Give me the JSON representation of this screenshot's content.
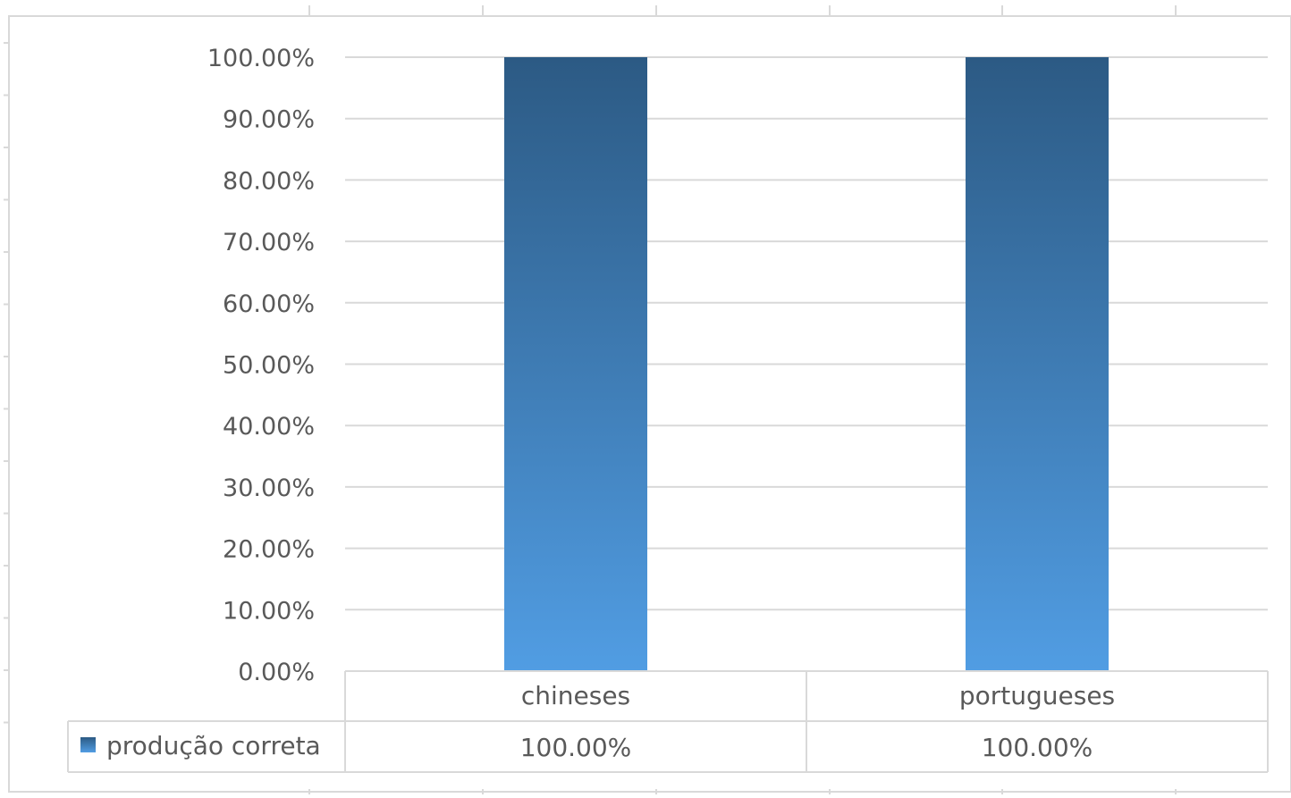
{
  "chart_data": {
    "type": "bar",
    "categories": [
      "chineses",
      "portugueses"
    ],
    "series": [
      {
        "name": "produção correta",
        "values": [
          100,
          100
        ],
        "labels": [
          "100.00%",
          "100.00%"
        ]
      }
    ],
    "ylim": [
      0,
      100
    ],
    "yticks": [
      "0.00%",
      "10.00%",
      "20.00%",
      "30.00%",
      "40.00%",
      "50.00%",
      "60.00%",
      "70.00%",
      "80.00%",
      "90.00%",
      "100.00%"
    ],
    "title": "",
    "xlabel": "",
    "ylabel": "",
    "grid": true,
    "data_table": true,
    "legend_placement": "data-table-left",
    "colors": {
      "bar_top": "#2c5a84",
      "bar_bottom": "#519de3",
      "gridline": "#d9d9d9",
      "text": "#595959"
    }
  }
}
